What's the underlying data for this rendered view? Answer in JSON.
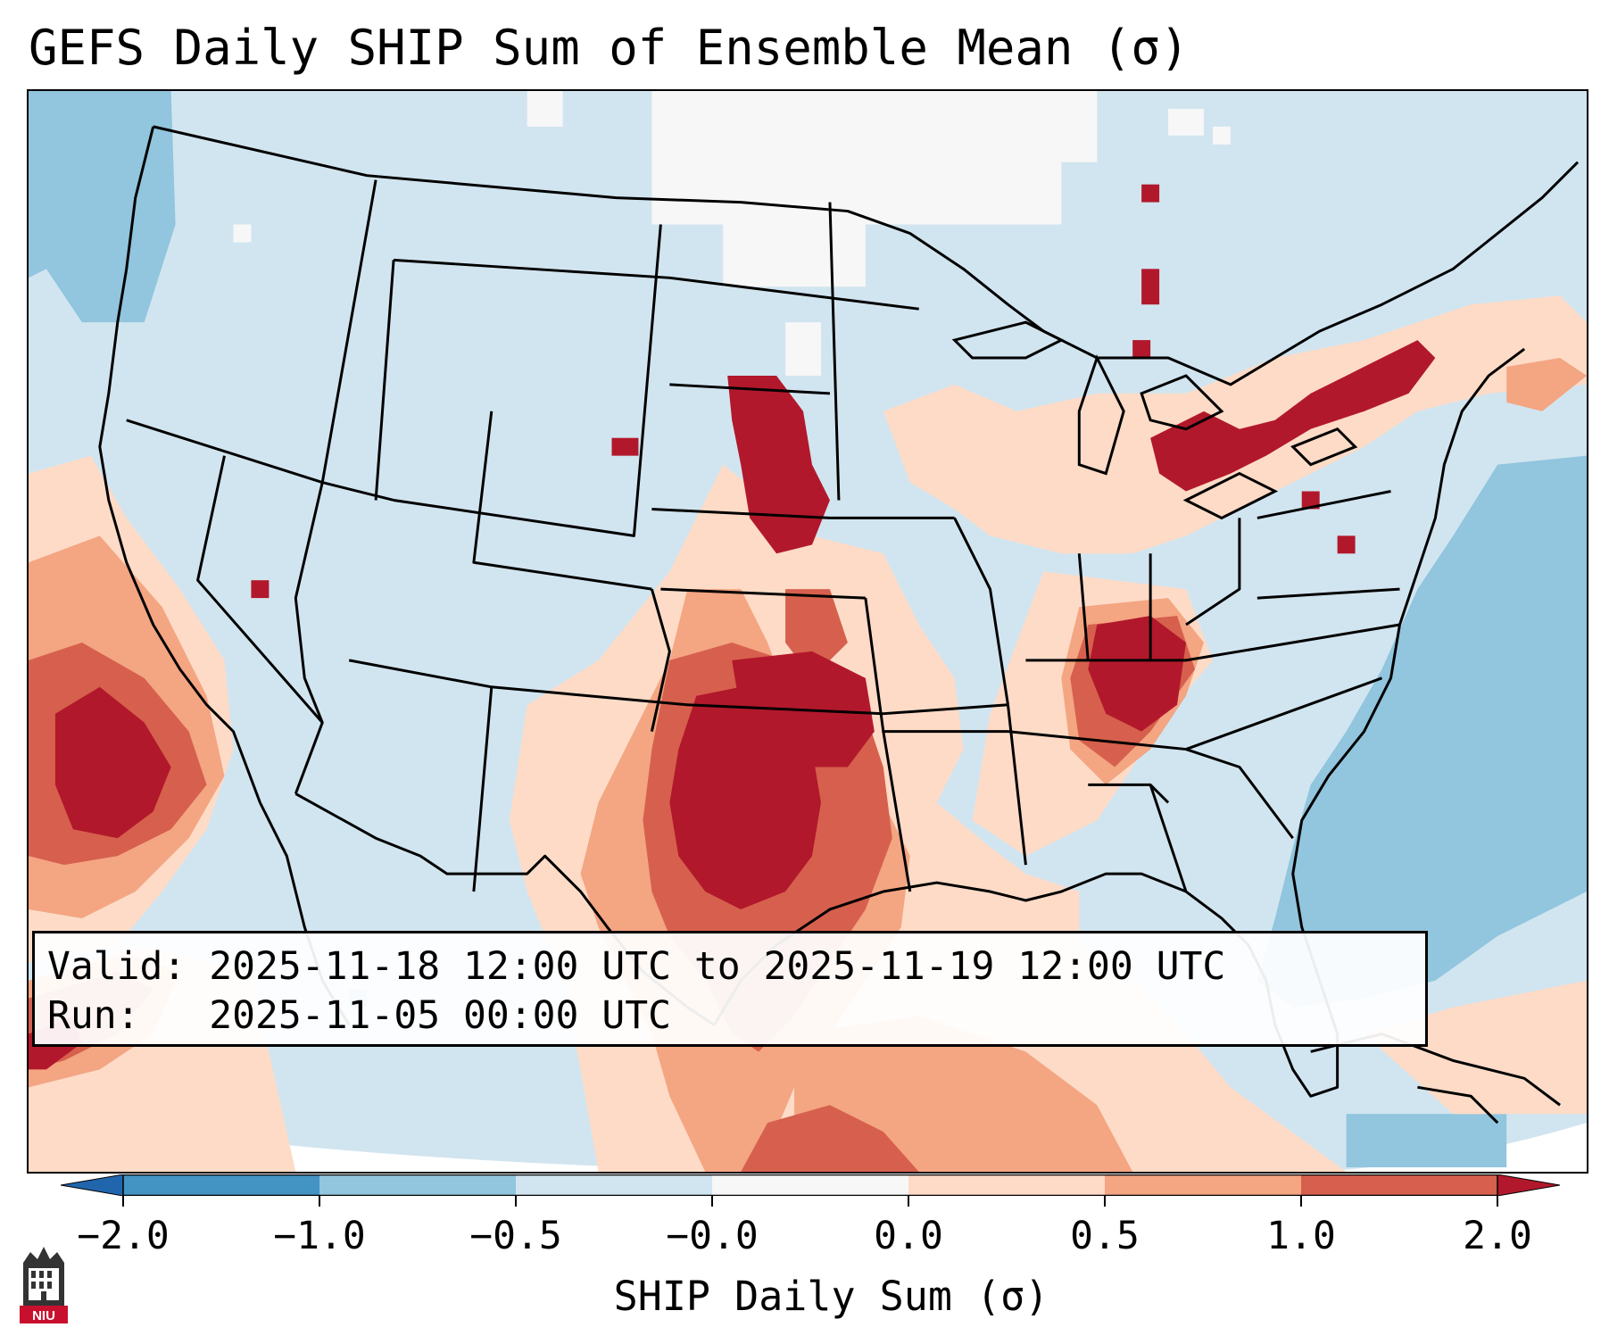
{
  "title": "GEFS Daily SHIP Sum of Ensemble Mean (σ)",
  "info": {
    "valid_line": "Valid: 2025-11-18 12:00 UTC to 2025-11-19 12:00 UTC",
    "run_line": "Run:   2025-11-05 00:00 UTC"
  },
  "colorbar": {
    "label": "SHIP Daily Sum (σ)",
    "ticks": [
      "−2.0",
      "−1.0",
      "−0.5",
      "−0.0",
      "0.0",
      "0.5",
      "1.0",
      "2.0"
    ],
    "bins": [
      {
        "range": "below -2.0",
        "color": "#2166ac"
      },
      {
        "range": "-2.0 to -1.0",
        "color": "#4393c3"
      },
      {
        "range": "-1.0 to -0.5",
        "color": "#92c5de"
      },
      {
        "range": "-0.5 to -0.0",
        "color": "#d1e5f0"
      },
      {
        "range": "-0.0 to 0.0",
        "color": "#f7f7f7"
      },
      {
        "range": "0.0 to 0.5",
        "color": "#fddbc7"
      },
      {
        "range": "0.5 to 1.0",
        "color": "#f4a582"
      },
      {
        "range": "1.0 to 2.0",
        "color": "#d6604d"
      },
      {
        "range": "above 2.0",
        "color": "#b2182b"
      }
    ]
  },
  "colors": {
    "background": "#d1e5f0",
    "near_zero": "#f7f7f7",
    "light_blue": "#92c5de",
    "pale_red": "#fddbc7",
    "light_red": "#f4a582",
    "mid_red": "#d6604d",
    "dark_red": "#b2182b"
  },
  "logo": {
    "text": "NIU",
    "icon": "niu-logo-icon"
  },
  "map": {
    "region": "Contiguous United States and surrounding areas",
    "projection_icon": "map-icon"
  }
}
